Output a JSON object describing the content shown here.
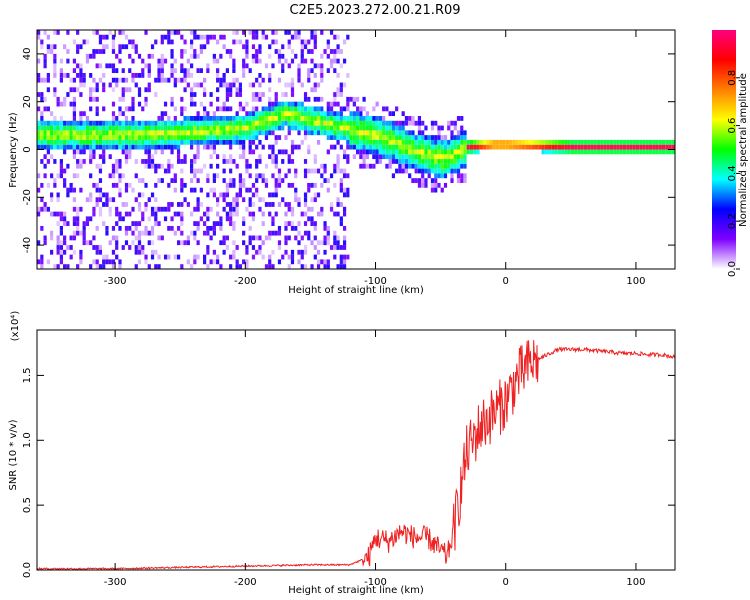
{
  "title": "C2E5.2023.272.00.21.R09",
  "chart_data": [
    {
      "type": "heatmap",
      "xlabel": "Height of straight line (km)",
      "ylabel": "Frequency (Hz)",
      "xlim": [
        -360,
        130
      ],
      "ylim": [
        -50,
        50
      ],
      "xticks": [
        -300,
        -200,
        -100,
        0,
        100
      ],
      "yticks": [
        -40,
        -20,
        0,
        20,
        40
      ],
      "colorbar": {
        "label": "Normalized spectral amplitude",
        "range": [
          0.0,
          1.0
        ],
        "ticks": [
          0.0,
          0.2,
          0.4,
          0.6,
          0.8
        ],
        "tick_labels": [
          "0.0",
          "0.2",
          "0.4",
          "0.6",
          "0.8"
        ],
        "colors": [
          "#ffffff",
          "#7f00ff",
          "#0000ff",
          "#00ffff",
          "#00ff00",
          "#ffff00",
          "#ff7f00",
          "#ff0000",
          "#ff0080"
        ]
      },
      "ridge": {
        "x": [
          -350,
          -300,
          -250,
          -200,
          -170,
          -140,
          -110,
          -90,
          -70,
          -50,
          -40,
          -30,
          -10,
          0,
          50,
          100,
          125
        ],
        "y": [
          5,
          5,
          6,
          8,
          14,
          10,
          6,
          3,
          -2,
          -5,
          -3,
          0,
          1,
          1,
          0,
          0,
          0
        ]
      }
    },
    {
      "type": "line",
      "xlabel": "Height of straight line (km)",
      "ylabel": "SNR (10 * v/v)",
      "y_multiplier": "(x10⁴)",
      "xlim": [
        -360,
        130
      ],
      "ylim": [
        0,
        1.85
      ],
      "xticks": [
        -300,
        -200,
        -100,
        0,
        100
      ],
      "yticks": [
        0.0,
        0.5,
        1.0,
        1.5
      ],
      "ytick_labels": [
        "0.0",
        "0.5",
        "1.0",
        "1.5"
      ],
      "series": [
        {
          "color": "#ee2222",
          "x": [
            -360,
            -300,
            -250,
            -200,
            -150,
            -120,
            -105,
            -100,
            -90,
            -80,
            -70,
            -60,
            -50,
            -45,
            -40,
            -35,
            -30,
            -25,
            -20,
            -15,
            -10,
            -5,
            0,
            5,
            10,
            20,
            30,
            40,
            50,
            60,
            70,
            80,
            90,
            100,
            110,
            120,
            130
          ],
          "y": [
            0.01,
            0.01,
            0.02,
            0.03,
            0.04,
            0.04,
            0.1,
            0.25,
            0.22,
            0.3,
            0.25,
            0.25,
            0.15,
            0.1,
            0.3,
            0.6,
            0.9,
            1.0,
            1.1,
            1.15,
            1.2,
            1.25,
            1.3,
            1.4,
            1.5,
            1.6,
            1.65,
            1.7,
            1.7,
            1.7,
            1.69,
            1.68,
            1.67,
            1.67,
            1.66,
            1.66,
            1.64
          ]
        }
      ]
    }
  ]
}
